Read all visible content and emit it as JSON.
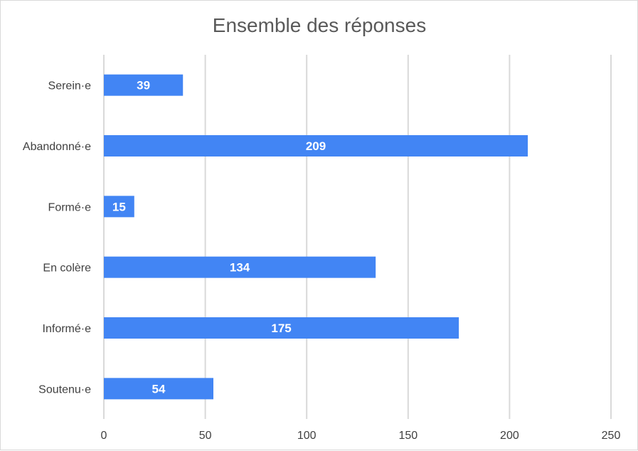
{
  "chart_data": {
    "type": "bar",
    "orientation": "horizontal",
    "title": "Ensemble des réponses",
    "categories": [
      "Serein·e",
      "Abandonné·e",
      "Formé·e",
      "En colère",
      "Informé·e",
      "Soutenu·e"
    ],
    "values": [
      39,
      209,
      15,
      134,
      175,
      54
    ],
    "xlim": [
      0,
      250
    ],
    "xticks": [
      0,
      50,
      100,
      150,
      200,
      250
    ],
    "grid": true,
    "legend": "none",
    "bar_color": "#4285f4",
    "data_labels": true
  }
}
